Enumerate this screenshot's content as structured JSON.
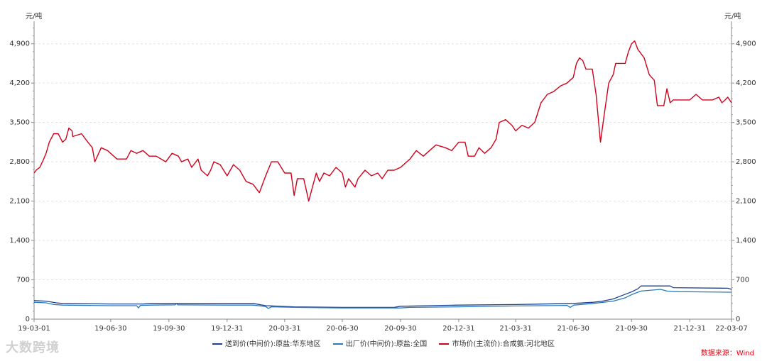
{
  "chart_data": {
    "type": "line",
    "y_unit_left": "元/吨",
    "y_unit_right": "元/吨",
    "ylim": [
      0,
      5300
    ],
    "y_ticks": [
      0,
      700,
      1400,
      2100,
      2800,
      3500,
      4200,
      4900
    ],
    "y_tick_labels": [
      "0",
      "700",
      "1,400",
      "2,100",
      "2,800",
      "3,500",
      "4,200",
      "4,900"
    ],
    "x_ticks": [
      "19-03-01",
      "19-06-30",
      "19-09-30",
      "19-12-31",
      "20-03-31",
      "20-06-30",
      "20-09-30",
      "20-12-31",
      "21-03-31",
      "21-06-30",
      "21-09-30",
      "21-12-31",
      "22-03-07"
    ],
    "xlim": [
      "19-03-01",
      "22-03-07"
    ],
    "grid": true,
    "legend_position": "bottom",
    "series": [
      {
        "name": "送到价(中间价):原盐:华东地区",
        "color": "#1f3f8f",
        "points": [
          [
            "19-03-01",
            330
          ],
          [
            "19-03-20",
            320
          ],
          [
            "19-04-05",
            290
          ],
          [
            "19-04-15",
            280
          ],
          [
            "19-06-30",
            270
          ],
          [
            "19-08-20",
            270
          ],
          [
            "19-09-01",
            280
          ],
          [
            "19-11-30",
            280
          ],
          [
            "20-02-10",
            280
          ],
          [
            "20-03-01",
            240
          ],
          [
            "20-04-15",
            220
          ],
          [
            "20-06-30",
            210
          ],
          [
            "20-09-20",
            210
          ],
          [
            "20-09-30",
            230
          ],
          [
            "20-11-15",
            240
          ],
          [
            "20-12-31",
            250
          ],
          [
            "21-03-31",
            260
          ],
          [
            "21-06-30",
            280
          ],
          [
            "21-08-01",
            300
          ],
          [
            "21-08-15",
            320
          ],
          [
            "21-09-01",
            360
          ],
          [
            "21-09-15",
            420
          ],
          [
            "21-10-01",
            490
          ],
          [
            "21-10-10",
            540
          ],
          [
            "21-10-15",
            590
          ],
          [
            "21-11-30",
            590
          ],
          [
            "21-12-05",
            560
          ],
          [
            "22-03-01",
            550
          ],
          [
            "22-03-07",
            530
          ]
        ]
      },
      {
        "name": "出厂价(中间价):原盐:全国",
        "color": "#2a7ab8",
        "points": [
          [
            "19-03-01",
            300
          ],
          [
            "19-03-20",
            290
          ],
          [
            "19-04-01",
            260
          ],
          [
            "19-04-15",
            250
          ],
          [
            "19-06-30",
            240
          ],
          [
            "19-08-10",
            240
          ],
          [
            "19-08-13",
            200
          ],
          [
            "19-08-16",
            245
          ],
          [
            "19-09-01",
            250
          ],
          [
            "19-10-10",
            255
          ],
          [
            "19-10-12",
            280
          ],
          [
            "19-10-14",
            255
          ],
          [
            "19-12-31",
            250
          ],
          [
            "20-02-10",
            250
          ],
          [
            "20-03-01",
            225
          ],
          [
            "20-03-05",
            190
          ],
          [
            "20-03-10",
            220
          ],
          [
            "20-04-15",
            210
          ],
          [
            "20-06-30",
            200
          ],
          [
            "20-09-30",
            200
          ],
          [
            "20-10-15",
            210
          ],
          [
            "20-12-31",
            220
          ],
          [
            "21-03-31",
            235
          ],
          [
            "21-06-20",
            245
          ],
          [
            "21-06-25",
            210
          ],
          [
            "21-07-01",
            250
          ],
          [
            "21-08-01",
            280
          ],
          [
            "21-09-01",
            320
          ],
          [
            "21-09-20",
            380
          ],
          [
            "21-10-01",
            440
          ],
          [
            "21-10-15",
            500
          ],
          [
            "21-11-15",
            530
          ],
          [
            "21-11-25",
            500
          ],
          [
            "21-12-15",
            490
          ],
          [
            "22-03-07",
            480
          ]
        ]
      },
      {
        "name": "市场价(主流价):合成氨:河北地区",
        "color": "#d0021b",
        "points": [
          [
            "19-03-01",
            2600
          ],
          [
            "19-03-05",
            2660
          ],
          [
            "19-03-10",
            2700
          ],
          [
            "19-03-15",
            2820
          ],
          [
            "19-03-20",
            2950
          ],
          [
            "19-03-25",
            3150
          ],
          [
            "19-04-01",
            3300
          ],
          [
            "19-04-08",
            3300
          ],
          [
            "19-04-15",
            3150
          ],
          [
            "19-04-20",
            3200
          ],
          [
            "19-04-25",
            3400
          ],
          [
            "19-04-30",
            3350
          ],
          [
            "19-05-01",
            3250
          ],
          [
            "19-05-15",
            3300
          ],
          [
            "19-05-25",
            3150
          ],
          [
            "19-06-01",
            3050
          ],
          [
            "19-06-05",
            2800
          ],
          [
            "19-06-15",
            3050
          ],
          [
            "19-06-25",
            3000
          ],
          [
            "19-07-10",
            2850
          ],
          [
            "19-07-25",
            2850
          ],
          [
            "19-08-01",
            3000
          ],
          [
            "19-08-10",
            2950
          ],
          [
            "19-08-20",
            3000
          ],
          [
            "19-08-30",
            2900
          ],
          [
            "19-09-10",
            2900
          ],
          [
            "19-09-25",
            2800
          ],
          [
            "19-10-05",
            2950
          ],
          [
            "19-10-15",
            2900
          ],
          [
            "19-10-20",
            2800
          ],
          [
            "19-10-30",
            2850
          ],
          [
            "19-11-05",
            2700
          ],
          [
            "19-11-15",
            2850
          ],
          [
            "19-11-20",
            2650
          ],
          [
            "19-11-30",
            2550
          ],
          [
            "19-12-05",
            2650
          ],
          [
            "19-12-10",
            2800
          ],
          [
            "19-12-20",
            2750
          ],
          [
            "19-12-31",
            2550
          ],
          [
            "20-01-10",
            2750
          ],
          [
            "20-01-20",
            2650
          ],
          [
            "20-01-30",
            2450
          ],
          [
            "20-02-10",
            2400
          ],
          [
            "20-02-20",
            2250
          ],
          [
            "20-03-01",
            2550
          ],
          [
            "20-03-10",
            2800
          ],
          [
            "20-03-20",
            2800
          ],
          [
            "20-03-31",
            2600
          ],
          [
            "20-04-10",
            2600
          ],
          [
            "20-04-15",
            2200
          ],
          [
            "20-04-20",
            2500
          ],
          [
            "20-04-30",
            2500
          ],
          [
            "20-05-05",
            2250
          ],
          [
            "20-05-08",
            2100
          ],
          [
            "20-05-15",
            2400
          ],
          [
            "20-05-20",
            2600
          ],
          [
            "20-05-25",
            2450
          ],
          [
            "20-06-01",
            2600
          ],
          [
            "20-06-10",
            2550
          ],
          [
            "20-06-20",
            2700
          ],
          [
            "20-06-30",
            2600
          ],
          [
            "20-07-05",
            2350
          ],
          [
            "20-07-10",
            2500
          ],
          [
            "20-07-20",
            2350
          ],
          [
            "20-07-25",
            2500
          ],
          [
            "20-08-05",
            2650
          ],
          [
            "20-08-15",
            2550
          ],
          [
            "20-08-25",
            2600
          ],
          [
            "20-09-01",
            2500
          ],
          [
            "20-09-10",
            2650
          ],
          [
            "20-09-20",
            2650
          ],
          [
            "20-09-30",
            2700
          ],
          [
            "20-10-15",
            2850
          ],
          [
            "20-10-25",
            3000
          ],
          [
            "20-11-05",
            2900
          ],
          [
            "20-11-15",
            3000
          ],
          [
            "20-11-25",
            3100
          ],
          [
            "20-12-10",
            3050
          ],
          [
            "20-12-20",
            3000
          ],
          [
            "20-12-31",
            3150
          ],
          [
            "21-01-10",
            3150
          ],
          [
            "21-01-15",
            2900
          ],
          [
            "21-01-25",
            2900
          ],
          [
            "21-02-01",
            3050
          ],
          [
            "21-02-10",
            2950
          ],
          [
            "21-02-20",
            3050
          ],
          [
            "21-02-28",
            3200
          ],
          [
            "21-03-05",
            3500
          ],
          [
            "21-03-15",
            3550
          ],
          [
            "21-03-25",
            3450
          ],
          [
            "21-03-31",
            3350
          ],
          [
            "21-04-10",
            3450
          ],
          [
            "21-04-20",
            3400
          ],
          [
            "21-04-30",
            3500
          ],
          [
            "21-05-10",
            3850
          ],
          [
            "21-05-20",
            4000
          ],
          [
            "21-05-30",
            4050
          ],
          [
            "21-06-10",
            4150
          ],
          [
            "21-06-20",
            4200
          ],
          [
            "21-06-30",
            4300
          ],
          [
            "21-07-05",
            4550
          ],
          [
            "21-07-10",
            4650
          ],
          [
            "21-07-15",
            4600
          ],
          [
            "21-07-20",
            4450
          ],
          [
            "21-07-30",
            4450
          ],
          [
            "21-08-05",
            4000
          ],
          [
            "21-08-12",
            3150
          ],
          [
            "21-08-18",
            3650
          ],
          [
            "21-08-25",
            4200
          ],
          [
            "21-09-01",
            4350
          ],
          [
            "21-09-05",
            4550
          ],
          [
            "21-09-20",
            4550
          ],
          [
            "21-09-25",
            4750
          ],
          [
            "21-09-30",
            4900
          ],
          [
            "21-10-05",
            4950
          ],
          [
            "21-10-10",
            4800
          ],
          [
            "21-10-20",
            4650
          ],
          [
            "21-10-28",
            4350
          ],
          [
            "21-11-05",
            4250
          ],
          [
            "21-11-10",
            3800
          ],
          [
            "21-11-20",
            3800
          ],
          [
            "21-11-25",
            4100
          ],
          [
            "21-11-30",
            3850
          ],
          [
            "21-12-05",
            3900
          ],
          [
            "21-12-31",
            3900
          ],
          [
            "22-01-10",
            4000
          ],
          [
            "22-01-20",
            3900
          ],
          [
            "22-02-05",
            3900
          ],
          [
            "22-02-15",
            3950
          ],
          [
            "22-02-20",
            3850
          ],
          [
            "22-02-25",
            3900
          ],
          [
            "22-03-01",
            3950
          ],
          [
            "22-03-07",
            3850
          ]
        ]
      }
    ]
  },
  "legend": {
    "s1": "送到价(中间价):原盐:华东地区",
    "s2": "出厂价(中间价):原盐:全国",
    "s3": "市场价(主流价):合成氨:河北地区"
  },
  "source_text": "数据来源：Wind",
  "watermark_text": "大数跨境"
}
